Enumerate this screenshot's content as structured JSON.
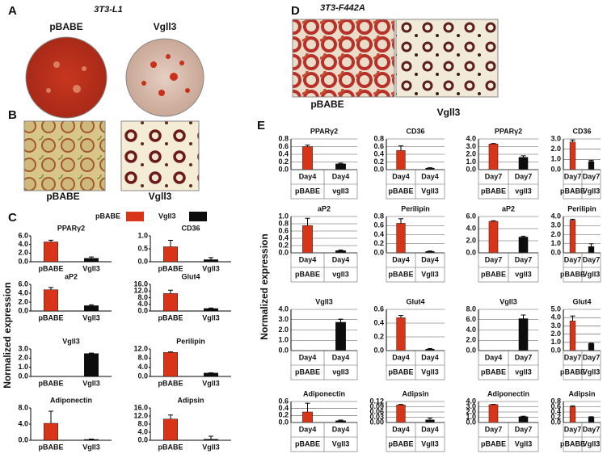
{
  "panels": {
    "a": "A",
    "b": "B",
    "c": "C",
    "d": "D",
    "e": "E"
  },
  "panel_a": {
    "title": "3T3-L1",
    "left": "pBABE",
    "right": "Vgll3"
  },
  "panel_b": {
    "left": "pBABE",
    "right": "Vgll3"
  },
  "panel_d": {
    "title": "3T3-F442A",
    "left": "pBABE",
    "right": "Vgll3"
  },
  "legend": [
    {
      "name": "pBABE",
      "color": "#d8341a"
    },
    {
      "name": "Vgll3",
      "color": "#0d0d0d"
    }
  ],
  "y_label_c": "Normalized expression",
  "y_label_e": "Normalized expression",
  "chart_data": [
    {
      "type": "bar",
      "title": "PPARγ2",
      "categories": [
        "pBABE",
        "Vgll3"
      ],
      "values": [
        4.6,
        0.8
      ],
      "errors": [
        0.4,
        0.3
      ],
      "ylim": [
        0,
        6
      ],
      "yticks": [
        {
          "value": 0,
          "label": "0.0"
        },
        {
          "value": 2,
          "label": "2.0"
        },
        {
          "value": 4,
          "label": "4.0"
        },
        {
          "value": 6,
          "label": "6.0"
        }
      ],
      "grid": false
    },
    {
      "type": "bar",
      "title": "CD36",
      "categories": [
        "pBABE",
        "Vgll3"
      ],
      "values": [
        0.58,
        0.08
      ],
      "errors": [
        0.25,
        0.08
      ],
      "ylim": [
        0,
        1
      ],
      "yticks": [
        {
          "value": 0,
          "label": "0.0"
        },
        0.5,
        {
          "value": 1,
          "label": "1.0"
        }
      ],
      "grid": false
    },
    {
      "type": "bar",
      "title": "aP2",
      "categories": [
        "pBABE",
        "Vgll3"
      ],
      "values": [
        4.8,
        1.2
      ],
      "errors": [
        0.5,
        0.2
      ],
      "ylim": [
        0,
        6
      ],
      "yticks": [
        {
          "value": 0,
          "label": "0.0"
        },
        {
          "value": 2,
          "label": "2.0"
        },
        {
          "value": 4,
          "label": "4.0"
        },
        {
          "value": 6,
          "label": "6.0"
        }
      ],
      "grid": false
    },
    {
      "type": "bar",
      "title": "Glut4",
      "categories": [
        "pBABE",
        "Vgll3"
      ],
      "values": [
        10.5,
        1.5
      ],
      "errors": [
        2,
        0.3
      ],
      "ylim": [
        0,
        16
      ],
      "yticks": [
        {
          "value": 0,
          "label": "0.0"
        },
        {
          "value": 4,
          "label": "4.0"
        },
        {
          "value": 8,
          "label": "8.0"
        },
        {
          "value": 12,
          "label": "12.0"
        },
        {
          "value": 16,
          "label": "16.0"
        }
      ],
      "grid": false
    },
    {
      "type": "bar",
      "title": "Vgll3",
      "categories": [
        "pBABE",
        "Vgll3"
      ],
      "values": [
        0,
        2.5
      ],
      "errors": [
        null,
        0.05
      ],
      "ylim": [
        0,
        3
      ],
      "yticks": [
        {
          "value": 0,
          "label": "0.0"
        },
        {
          "value": 1,
          "label": "1.0"
        },
        {
          "value": 2,
          "label": "2.0"
        },
        {
          "value": 3,
          "label": "3.0"
        }
      ],
      "grid": false
    },
    {
      "type": "bar",
      "title": "Perilipin",
      "categories": [
        "pBABE",
        "Vgll3"
      ],
      "values": [
        10.5,
        1.5
      ],
      "errors": [
        0.2,
        0.1
      ],
      "ylim": [
        0,
        12
      ],
      "yticks": [
        {
          "value": 0,
          "label": "0.0"
        },
        {
          "value": 4,
          "label": "4.0"
        },
        {
          "value": 8,
          "label": "8.0"
        },
        {
          "value": 12,
          "label": "12.0"
        }
      ],
      "grid": false
    },
    {
      "type": "bar",
      "title": "Adiponectin",
      "categories": [
        "pBABE",
        "Vgll3"
      ],
      "values": [
        4.2,
        0.2
      ],
      "errors": [
        3,
        0.1
      ],
      "ylim": [
        0,
        8
      ],
      "yticks": [
        {
          "value": 0,
          "label": "0.0"
        },
        {
          "value": 4,
          "label": "4.0"
        },
        {
          "value": 8,
          "label": "8.0"
        }
      ],
      "grid": false
    },
    {
      "type": "bar",
      "title": "Adipsin",
      "categories": [
        "pBABE",
        "Vgll3"
      ],
      "values": [
        10.5,
        0.5
      ],
      "errors": [
        2,
        1.5
      ],
      "ylim": [
        0,
        16
      ],
      "yticks": [
        {
          "value": 0,
          "label": "0.0"
        },
        {
          "value": 4,
          "label": "4.0"
        },
        {
          "value": 8,
          "label": "8.0"
        },
        {
          "value": 12,
          "label": "12.0"
        },
        {
          "value": 16,
          "label": "16.0"
        }
      ],
      "grid": false
    },
    {
      "type": "bar",
      "title": "PPARγ2",
      "days": [
        "Day4",
        "Day4"
      ],
      "categories": [
        "pBABE",
        "vgll3"
      ],
      "values": [
        0.6,
        0.15
      ],
      "errors": [
        0.04,
        0.02
      ],
      "ylim": [
        0,
        0.8
      ],
      "yticks": [
        {
          "value": 0,
          "label": "0.0"
        },
        0.2,
        0.4,
        0.6,
        0.8
      ],
      "grid": true
    },
    {
      "type": "bar",
      "title": "CD36",
      "days": [
        "Day4",
        "Day4"
      ],
      "categories": [
        "pBABE",
        "Vgll3"
      ],
      "values": [
        0.5,
        0.04
      ],
      "errors": [
        0.12,
        0.01
      ],
      "ylim": [
        0,
        0.8
      ],
      "yticks": [
        {
          "value": 0,
          "label": "0.0"
        },
        0.2,
        0.4,
        0.6,
        0.8
      ],
      "grid": true
    },
    {
      "type": "bar",
      "title": "PPARγ2",
      "days": [
        "Day7",
        "Day7"
      ],
      "categories": [
        "pBABE",
        "vgll3"
      ],
      "values": [
        3.35,
        1.6
      ],
      "errors": [
        0.05,
        0.2
      ],
      "ylim": [
        0,
        4
      ],
      "yticks": [
        {
          "value": 0,
          "label": "0.0"
        },
        {
          "value": 1,
          "label": "1.0"
        },
        {
          "value": 2,
          "label": "2.0"
        },
        {
          "value": 3,
          "label": "3.0"
        },
        {
          "value": 4,
          "label": "4.0"
        }
      ],
      "grid": true
    },
    {
      "type": "bar",
      "title": "CD36",
      "days": [
        "Day7",
        "Day7"
      ],
      "categories": [
        "pBABE",
        "Vgll3"
      ],
      "values": [
        2.7,
        0.8
      ],
      "errors": [
        0.2,
        0.1
      ],
      "ylim": [
        0,
        3
      ],
      "yticks": [
        {
          "value": 0,
          "label": "0.0"
        },
        {
          "value": 1,
          "label": "1.0"
        },
        {
          "value": 2,
          "label": "2.0"
        },
        {
          "value": 3,
          "label": "3.0"
        }
      ],
      "grid": true
    },
    {
      "type": "bar",
      "title": "aP2",
      "days": [
        "Day4",
        "Day4"
      ],
      "categories": [
        "pBABE",
        "vgll3"
      ],
      "values": [
        0.75,
        0.06
      ],
      "errors": [
        0.2,
        0.02
      ],
      "ylim": [
        0,
        1
      ],
      "yticks": [
        {
          "value": 0,
          "label": "0.0"
        },
        0.2,
        0.4,
        0.6,
        0.8,
        {
          "value": 1,
          "label": "1.0"
        }
      ],
      "grid": true
    },
    {
      "type": "bar",
      "title": "Perilipin",
      "days": [
        "Day4",
        "Day4"
      ],
      "categories": [
        "pBABE",
        "Vgll3"
      ],
      "values": [
        0.65,
        0.03
      ],
      "errors": [
        0.1,
        0.01
      ],
      "ylim": [
        0,
        0.8
      ],
      "yticks": [
        {
          "value": 0,
          "label": "0.0"
        },
        0.2,
        0.4,
        0.6,
        0.8
      ],
      "grid": true
    },
    {
      "type": "bar",
      "title": "aP2",
      "days": [
        "Day7",
        "Day7"
      ],
      "categories": [
        "pBABE",
        "vgll3"
      ],
      "values": [
        5.2,
        2.6
      ],
      "errors": [
        0.1,
        0.15
      ],
      "ylim": [
        0,
        6
      ],
      "yticks": [
        {
          "value": 0,
          "label": "0.0"
        },
        {
          "value": 2,
          "label": "2.0"
        },
        {
          "value": 4,
          "label": "4.0"
        },
        {
          "value": 6,
          "label": "6.0"
        }
      ],
      "grid": true
    },
    {
      "type": "bar",
      "title": "Perilipin",
      "days": [
        "Day7",
        "Day7"
      ],
      "categories": [
        "pBABE",
        "Vgll3"
      ],
      "values": [
        3.6,
        0.7
      ],
      "errors": [
        0.1,
        0.3
      ],
      "ylim": [
        0,
        4
      ],
      "yticks": [
        {
          "value": 0,
          "label": "0.0"
        },
        {
          "value": 1,
          "label": "1.0"
        },
        {
          "value": 2,
          "label": "2.0"
        },
        {
          "value": 3,
          "label": "3.0"
        },
        {
          "value": 4,
          "label": "4.0"
        }
      ],
      "grid": true
    },
    {
      "type": "bar",
      "title": "Vgll3",
      "days": [
        "Day4",
        "Day4"
      ],
      "categories": [
        "pBABE",
        "vgll3"
      ],
      "values": [
        0,
        2.75
      ],
      "errors": [
        null,
        0.3
      ],
      "ylim": [
        0,
        4
      ],
      "yticks": [
        {
          "value": 0,
          "label": "0.0"
        },
        {
          "value": 1,
          "label": "1.0"
        },
        {
          "value": 2,
          "label": "2.0"
        },
        {
          "value": 3,
          "label": "3.0"
        },
        {
          "value": 4,
          "label": "4.0"
        }
      ],
      "grid": true
    },
    {
      "type": "bar",
      "title": "Glut4",
      "days": [
        "Day4",
        "Day4"
      ],
      "categories": [
        "pBABE",
        "Vgll3"
      ],
      "values": [
        0.48,
        0.02
      ],
      "errors": [
        0.03,
        0.01
      ],
      "ylim": [
        0,
        0.6
      ],
      "yticks": [
        {
          "value": 0,
          "label": "0.0"
        },
        0.2,
        0.4,
        0.6
      ],
      "grid": true
    },
    {
      "type": "bar",
      "title": "Vgll3",
      "days": [
        "Day4",
        "Day7"
      ],
      "categories": [
        "pBABE",
        "vgll3"
      ],
      "values": [
        0,
        6.2
      ],
      "errors": [
        null,
        0.7
      ],
      "ylim": [
        0,
        8
      ],
      "yticks": [
        {
          "value": 0,
          "label": "0.0"
        },
        {
          "value": 2,
          "label": "2.0"
        },
        {
          "value": 4,
          "label": "4.0"
        },
        {
          "value": 6,
          "label": "6.0"
        },
        {
          "value": 8,
          "label": "8.0"
        }
      ],
      "grid": true
    },
    {
      "type": "bar",
      "title": "Glut4",
      "days": [
        "Day7",
        "Day7"
      ],
      "categories": [
        "pBABE",
        "Vgll3"
      ],
      "values": [
        3.6,
        0.85
      ],
      "errors": [
        0.6,
        0.05
      ],
      "ylim": [
        0,
        5
      ],
      "yticks": [
        {
          "value": 0,
          "label": "0.0"
        },
        {
          "value": 1,
          "label": "1.0"
        },
        {
          "value": 2,
          "label": "2.0"
        },
        {
          "value": 3,
          "label": "3.0"
        },
        {
          "value": 4,
          "label": "4.0"
        },
        {
          "value": 5,
          "label": "5.0"
        }
      ],
      "grid": true
    },
    {
      "type": "bar",
      "title": "Adiponectin",
      "days": [
        "Day4",
        "Day4"
      ],
      "categories": [
        "pBABE",
        "Vgll3"
      ],
      "values": [
        0.3,
        0.05
      ],
      "errors": [
        0.25,
        0.02
      ],
      "ylim": [
        0,
        0.6
      ],
      "yticks": [
        {
          "value": 0,
          "label": "0.0"
        },
        0.2,
        0.4,
        0.6
      ],
      "grid": true
    },
    {
      "type": "bar",
      "title": "Adipsin",
      "days": [
        "Day4",
        "Day4"
      ],
      "categories": [
        "pBABE",
        "Vgll3"
      ],
      "values": [
        0.1,
        0.015
      ],
      "errors": [
        0.003,
        0.01
      ],
      "ylim": [
        0,
        0.12
      ],
      "yticks": [
        {
          "value": 0,
          "label": "0.00"
        },
        {
          "value": 0.03,
          "label": "0.03"
        },
        {
          "value": 0.06,
          "label": "0.06"
        },
        {
          "value": 0.09,
          "label": "0.09"
        },
        {
          "value": 0.12,
          "label": "0.12"
        }
      ],
      "grid": true
    },
    {
      "type": "bar",
      "title": "Adiponectin",
      "days": [
        "Day7",
        "Day7"
      ],
      "categories": [
        "pBABE",
        "Vgll3"
      ],
      "values": [
        3.4,
        1.1
      ],
      "errors": [
        0.05,
        0.1
      ],
      "ylim": [
        0,
        4
      ],
      "yticks": [
        {
          "value": 0,
          "label": "0.0"
        },
        {
          "value": 1,
          "label": "1.0"
        },
        {
          "value": 2,
          "label": "2.0"
        },
        {
          "value": 3,
          "label": "3.0"
        },
        {
          "value": 4,
          "label": "4.0"
        }
      ],
      "grid": true
    },
    {
      "type": "bar",
      "title": "Adipsin",
      "days": [
        "Day7",
        "Day7"
      ],
      "categories": [
        "pBABE",
        "Vgll3"
      ],
      "values": [
        0.6,
        0.2
      ],
      "errors": [
        0.03,
        0.02
      ],
      "ylim": [
        0,
        0.8
      ],
      "yticks": [
        {
          "value": 0,
          "label": "0.0"
        },
        0.2,
        0.4,
        0.6,
        0.8
      ],
      "grid": true
    }
  ]
}
